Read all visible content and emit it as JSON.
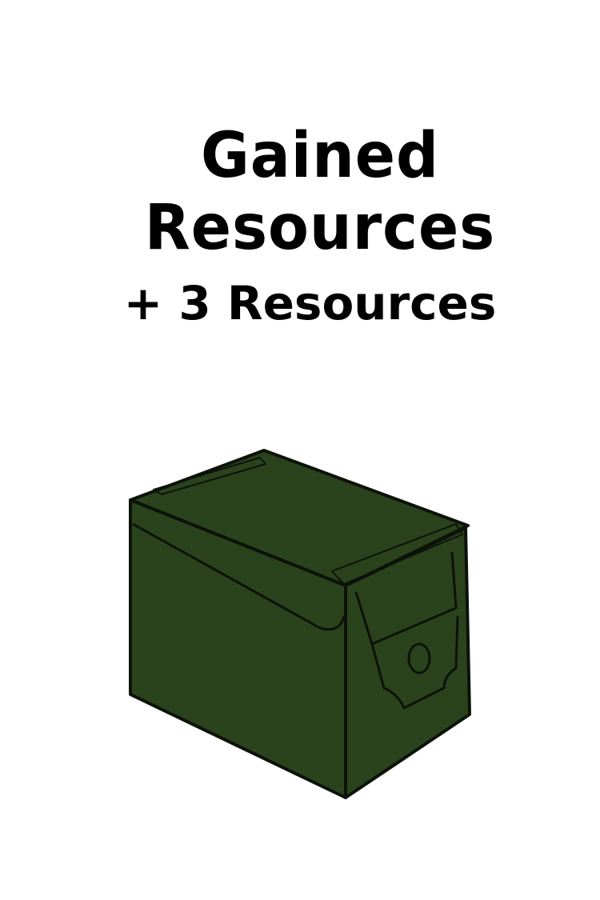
{
  "title": "Gained Resources",
  "reward": "+ 3 Resources"
}
